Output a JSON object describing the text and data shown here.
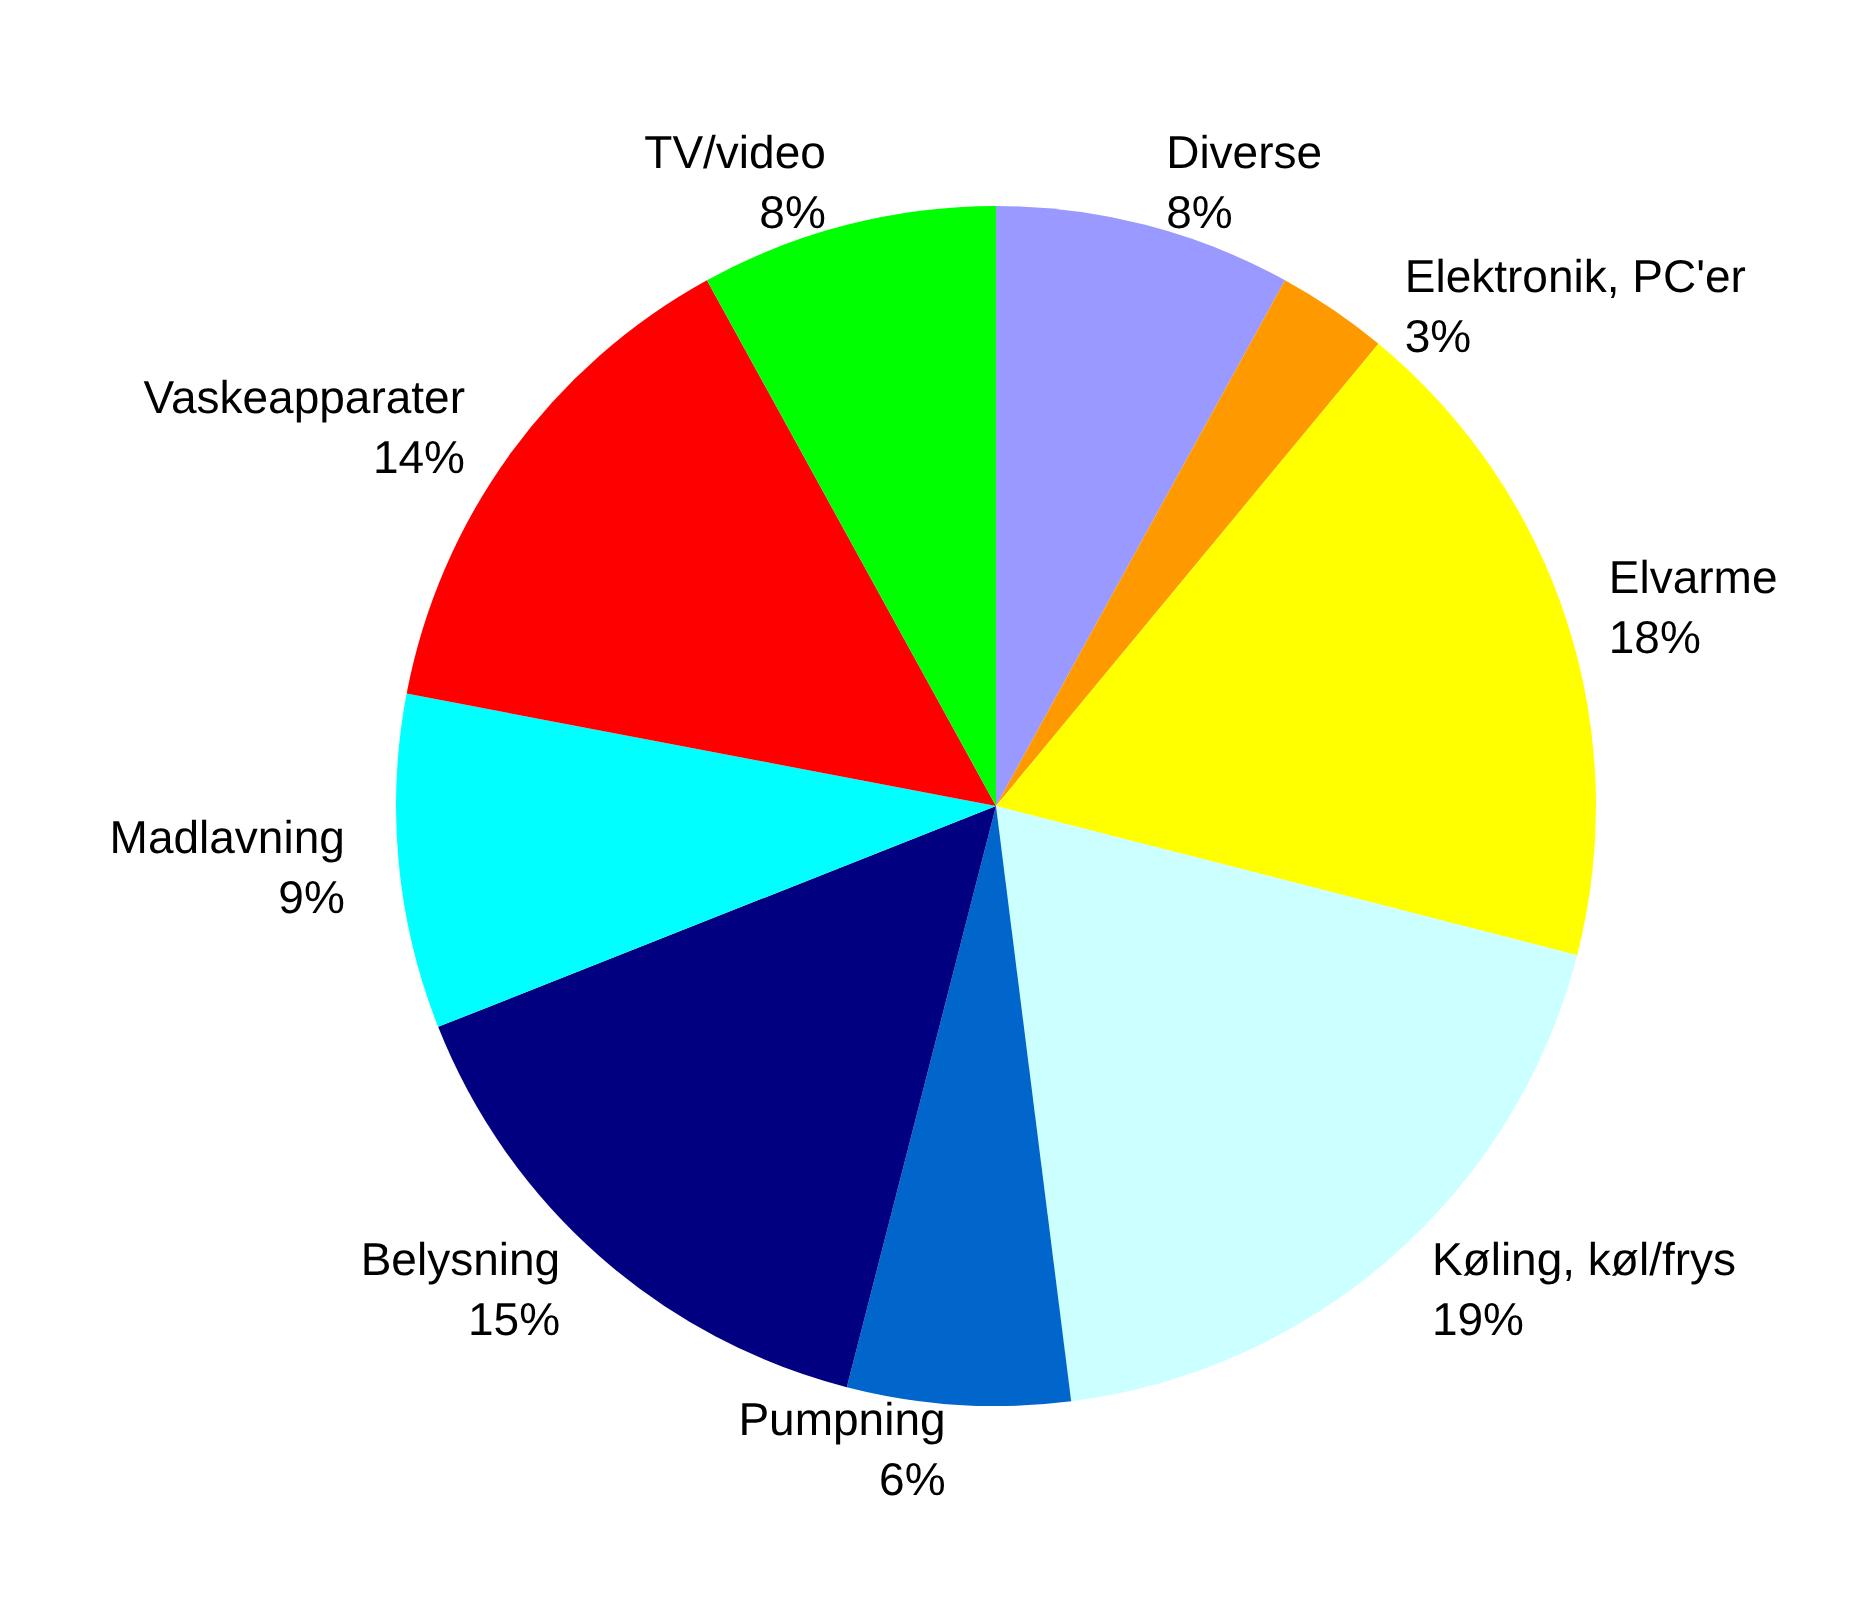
{
  "chart_data": {
    "type": "pie",
    "categories": [
      "Diverse",
      "Elektronik, PC'er",
      "Elvarme",
      "Køling, køl/frys",
      "Pumpning",
      "Belysning",
      "Madlavning",
      "Vaskeapparater",
      "TV/video"
    ],
    "values": [
      8,
      3,
      18,
      19,
      6,
      15,
      9,
      14,
      8
    ],
    "value_labels": [
      "8%",
      "3%",
      "18%",
      "19%",
      "6%",
      "15%",
      "9%",
      "14%",
      "8%"
    ],
    "colors": [
      "#9999ff",
      "#ff9900",
      "#ffff00",
      "#ccffff",
      "#0066cc",
      "#000080",
      "#00ffff",
      "#ff0000",
      "#00ff00"
    ],
    "legend": false
  }
}
